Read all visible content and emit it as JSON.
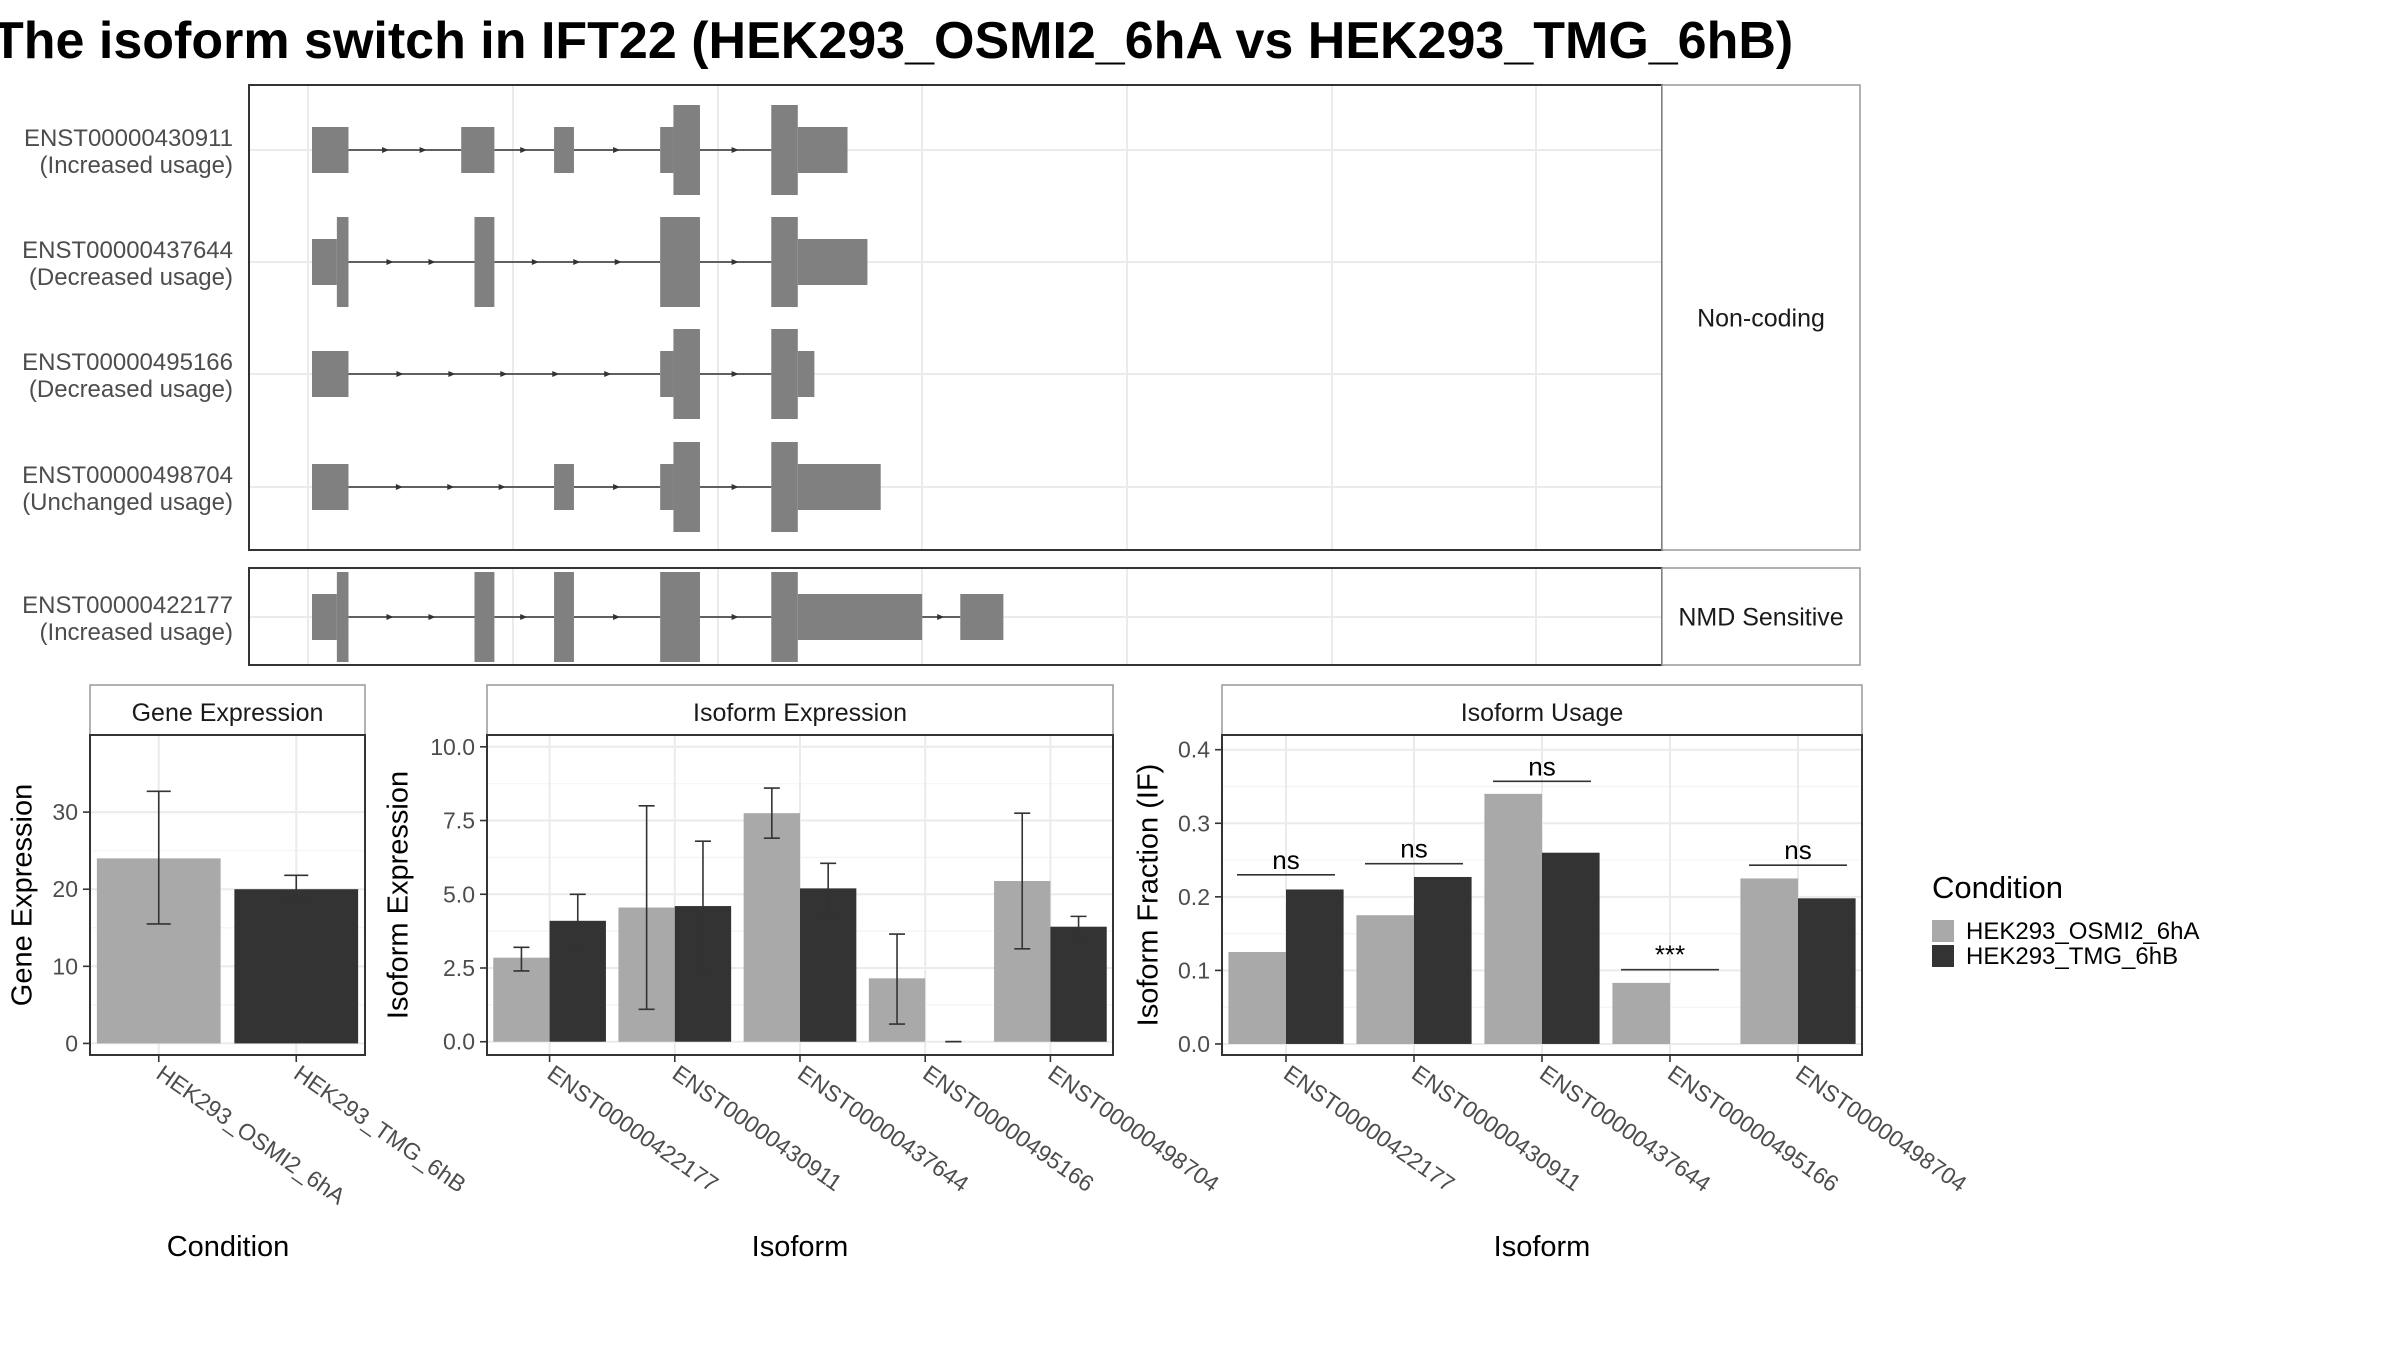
{
  "title": "The isoform switch in IFT22 (HEK293_OSMI2_6hA vs HEK293_TMG_6hB)",
  "colors": {
    "cond_a": "#A9A9A9",
    "cond_b": "#333333",
    "exon": "#808080"
  },
  "structure": {
    "groups": [
      {
        "label": "Non-coding",
        "transcripts": [
          {
            "id": "ENST00000430911",
            "usage": "(Increased usage)",
            "exons": [
              [
                0,
                22,
                "n"
              ],
              [
                90,
                110,
                "n"
              ],
              [
                146,
                158,
                "n"
              ],
              [
                210,
                218,
                "n"
              ],
              [
                218,
                234,
                "w"
              ],
              [
                277,
                293,
                "w"
              ],
              [
                293,
                323,
                "n"
              ]
            ]
          },
          {
            "id": "ENST00000437644",
            "usage": "(Decreased usage)",
            "exons": [
              [
                0,
                15,
                "n"
              ],
              [
                15,
                22,
                "w"
              ],
              [
                98,
                110,
                "w"
              ],
              [
                210,
                234,
                "w"
              ],
              [
                277,
                293,
                "w"
              ],
              [
                293,
                335,
                "n"
              ]
            ]
          },
          {
            "id": "ENST00000495166",
            "usage": "(Decreased usage)",
            "exons": [
              [
                0,
                22,
                "n"
              ],
              [
                210,
                218,
                "n"
              ],
              [
                218,
                234,
                "w"
              ],
              [
                277,
                293,
                "w"
              ],
              [
                293,
                303,
                "n"
              ]
            ]
          },
          {
            "id": "ENST00000498704",
            "usage": "(Unchanged usage)",
            "exons": [
              [
                0,
                22,
                "n"
              ],
              [
                146,
                158,
                "n"
              ],
              [
                210,
                218,
                "n"
              ],
              [
                218,
                234,
                "w"
              ],
              [
                277,
                293,
                "w"
              ],
              [
                293,
                343,
                "n"
              ]
            ]
          }
        ]
      },
      {
        "label": "NMD Sensitive",
        "transcripts": [
          {
            "id": "ENST00000422177",
            "usage": "(Increased usage)",
            "exons": [
              [
                0,
                15,
                "n"
              ],
              [
                15,
                22,
                "w"
              ],
              [
                98,
                110,
                "w"
              ],
              [
                146,
                158,
                "w"
              ],
              [
                210,
                234,
                "w"
              ],
              [
                277,
                293,
                "w"
              ],
              [
                293,
                368,
                "n"
              ],
              [
                391,
                417,
                "n"
              ]
            ]
          }
        ]
      }
    ]
  },
  "chart_data": [
    {
      "type": "bar",
      "title": "Gene Expression",
      "xlabel": "Condition",
      "ylabel": "Gene Expression",
      "categories": [
        "HEK293_OSMI2_6hA",
        "HEK293_TMG_6hB"
      ],
      "values": [
        24,
        20
      ],
      "errors": [
        [
          15.5,
          32.7
        ],
        [
          18.2,
          21.8
        ]
      ],
      "ylim": [
        -1.5,
        40
      ],
      "yticks": [
        0,
        10,
        20,
        30
      ],
      "ytick_labels": [
        "0",
        "10",
        "20",
        "30"
      ]
    },
    {
      "type": "bar",
      "title": "Isoform Expression",
      "xlabel": "Isoform",
      "ylabel": "Isoform Expression",
      "categories": [
        "ENST00000422177",
        "ENST00000430911",
        "ENST00000437644",
        "ENST00000495166",
        "ENST00000498704"
      ],
      "series": [
        {
          "name": "HEK293_OSMI2_6hA",
          "values": [
            2.85,
            4.55,
            7.75,
            2.15,
            5.45
          ],
          "errors": [
            [
              2.4,
              3.2
            ],
            [
              1.1,
              8.0
            ],
            [
              6.9,
              8.6
            ],
            [
              0.6,
              3.65
            ],
            [
              3.15,
              7.75
            ]
          ]
        },
        {
          "name": "HEK293_TMG_6hB",
          "values": [
            4.1,
            4.6,
            5.2,
            0.0,
            3.9
          ],
          "errors": [
            [
              3.1,
              5.0
            ],
            [
              2.3,
              6.8
            ],
            [
              4.3,
              6.05
            ],
            [
              0.0,
              0.0
            ],
            [
              3.5,
              4.25
            ]
          ]
        }
      ],
      "ylim": [
        -0.45,
        10.4
      ],
      "yticks": [
        0,
        2.5,
        5,
        7.5,
        10
      ],
      "ytick_labels": [
        "0.0",
        "2.5",
        "5.0",
        "7.5",
        "10.0"
      ]
    },
    {
      "type": "bar",
      "title": "Isoform Usage",
      "xlabel": "Isoform",
      "ylabel": "Isoform Fraction (IF)",
      "categories": [
        "ENST00000422177",
        "ENST00000430911",
        "ENST00000437644",
        "ENST00000495166",
        "ENST00000498704"
      ],
      "series": [
        {
          "name": "HEK293_OSMI2_6hA",
          "values": [
            0.125,
            0.175,
            0.34,
            0.083,
            0.225
          ]
        },
        {
          "name": "HEK293_TMG_6hB",
          "values": [
            0.21,
            0.227,
            0.26,
            0.0,
            0.198
          ]
        }
      ],
      "significance": [
        "ns",
        "ns",
        "ns",
        "***",
        "ns"
      ],
      "sig_level": [
        0.23,
        0.245,
        0.357,
        0.101,
        0.243
      ],
      "ylim": [
        -0.015,
        0.42
      ],
      "yticks": [
        0,
        0.1,
        0.2,
        0.3,
        0.4
      ],
      "ytick_labels": [
        "0.0",
        "0.1",
        "0.2",
        "0.3",
        "0.4"
      ]
    }
  ],
  "legend": {
    "title": "Condition",
    "items": [
      "HEK293_OSMI2_6hA",
      "HEK293_TMG_6hB"
    ]
  }
}
